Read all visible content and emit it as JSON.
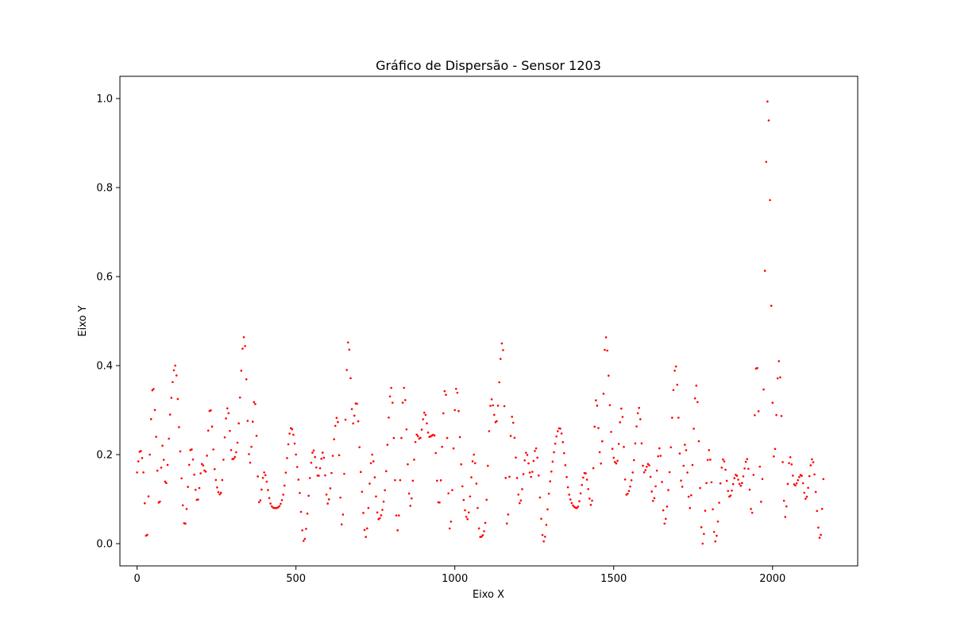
{
  "chart_data": {
    "type": "scatter",
    "title": "Gráfico de Dispersão - Sensor 1203",
    "xlabel": "Eixo X",
    "ylabel": "Eixo Y",
    "xlim": [
      -54,
      2268
    ],
    "ylim": [
      -0.05,
      1.05
    ],
    "xticks": [
      0,
      500,
      1000,
      1500,
      2000
    ],
    "yticks": [
      0.0,
      0.2,
      0.4,
      0.6,
      0.8,
      1.0
    ],
    "xtick_labels": [
      "0",
      "500",
      "1000",
      "1500",
      "2000"
    ],
    "ytick_labels": [
      "0.0",
      "0.2",
      "0.4",
      "0.6",
      "0.8",
      "1.0"
    ],
    "marker_color": "#ff0000",
    "grid": false,
    "x_step": 4,
    "series": [
      {
        "x_start": 0,
        "x_end": 2160,
        "keypoints": [
          [
            0,
            0.16
          ],
          [
            10,
            0.21
          ],
          [
            20,
            0.16
          ],
          [
            30,
            0.005
          ],
          [
            40,
            0.2
          ],
          [
            50,
            0.355
          ],
          [
            60,
            0.24
          ],
          [
            70,
            0.08
          ],
          [
            80,
            0.22
          ],
          [
            90,
            0.13
          ],
          [
            105,
            0.3
          ],
          [
            120,
            0.4
          ],
          [
            135,
            0.22
          ],
          [
            150,
            0.04
          ],
          [
            170,
            0.215
          ],
          [
            190,
            0.095
          ],
          [
            205,
            0.18
          ],
          [
            215,
            0.16
          ],
          [
            230,
            0.305
          ],
          [
            245,
            0.16
          ],
          [
            262,
            0.11
          ],
          [
            285,
            0.305
          ],
          [
            300,
            0.19
          ],
          [
            315,
            0.22
          ],
          [
            337,
            0.465
          ],
          [
            355,
            0.18
          ],
          [
            370,
            0.325
          ],
          [
            385,
            0.09
          ],
          [
            400,
            0.16
          ],
          [
            420,
            0.09
          ],
          [
            435,
            0.08
          ],
          [
            460,
            0.11
          ],
          [
            485,
            0.26
          ],
          [
            510,
            0.13
          ],
          [
            525,
            0.005
          ],
          [
            555,
            0.21
          ],
          [
            570,
            0.15
          ],
          [
            585,
            0.205
          ],
          [
            600,
            0.09
          ],
          [
            630,
            0.285
          ],
          [
            645,
            0.04
          ],
          [
            665,
            0.455
          ],
          [
            680,
            0.27
          ],
          [
            690,
            0.32
          ],
          [
            705,
            0.15
          ],
          [
            720,
            0.015
          ],
          [
            740,
            0.2
          ],
          [
            760,
            0.055
          ],
          [
            780,
            0.12
          ],
          [
            800,
            0.35
          ],
          [
            820,
            0.03
          ],
          [
            840,
            0.35
          ],
          [
            860,
            0.085
          ],
          [
            880,
            0.245
          ],
          [
            890,
            0.235
          ],
          [
            905,
            0.295
          ],
          [
            920,
            0.24
          ],
          [
            935,
            0.245
          ],
          [
            950,
            0.085
          ],
          [
            970,
            0.35
          ],
          [
            985,
            0.03
          ],
          [
            1005,
            0.35
          ],
          [
            1025,
            0.12
          ],
          [
            1040,
            0.055
          ],
          [
            1060,
            0.2
          ],
          [
            1080,
            0.015
          ],
          [
            1095,
            0.04
          ],
          [
            1115,
            0.325
          ],
          [
            1130,
            0.27
          ],
          [
            1150,
            0.455
          ],
          [
            1165,
            0.04
          ],
          [
            1180,
            0.285
          ],
          [
            1205,
            0.09
          ],
          [
            1225,
            0.205
          ],
          [
            1240,
            0.15
          ],
          [
            1255,
            0.215
          ],
          [
            1280,
            0.005
          ],
          [
            1300,
            0.14
          ],
          [
            1330,
            0.26
          ],
          [
            1360,
            0.11
          ],
          [
            1385,
            0.08
          ],
          [
            1410,
            0.16
          ],
          [
            1430,
            0.085
          ],
          [
            1445,
            0.325
          ],
          [
            1460,
            0.18
          ],
          [
            1475,
            0.465
          ],
          [
            1495,
            0.22
          ],
          [
            1510,
            0.18
          ],
          [
            1525,
            0.305
          ],
          [
            1540,
            0.11
          ],
          [
            1560,
            0.16
          ],
          [
            1580,
            0.305
          ],
          [
            1595,
            0.16
          ],
          [
            1610,
            0.18
          ],
          [
            1625,
            0.095
          ],
          [
            1645,
            0.215
          ],
          [
            1660,
            0.045
          ],
          [
            1675,
            0.15
          ],
          [
            1695,
            0.4
          ],
          [
            1715,
            0.125
          ],
          [
            1725,
            0.225
          ],
          [
            1740,
            0.08
          ],
          [
            1760,
            0.355
          ],
          [
            1780,
            0.0
          ],
          [
            1800,
            0.21
          ],
          [
            1820,
            0.005
          ],
          [
            1845,
            0.19
          ],
          [
            1865,
            0.105
          ],
          [
            1885,
            0.155
          ],
          [
            1900,
            0.13
          ],
          [
            1920,
            0.19
          ],
          [
            1935,
            0.065
          ],
          [
            1950,
            0.41
          ],
          [
            1965,
            0.09
          ],
          [
            1985,
            1.0
          ],
          [
            2005,
            0.19
          ],
          [
            2020,
            0.41
          ],
          [
            2040,
            0.06
          ],
          [
            2055,
            0.195
          ],
          [
            2070,
            0.13
          ],
          [
            2090,
            0.155
          ],
          [
            2105,
            0.1
          ],
          [
            2125,
            0.19
          ],
          [
            2150,
            0.01
          ],
          [
            2160,
            0.145
          ]
        ]
      }
    ]
  }
}
